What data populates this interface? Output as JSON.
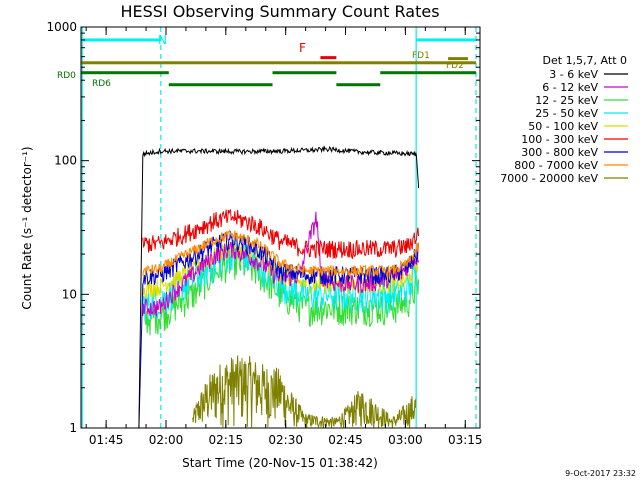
{
  "chart_data": {
    "type": "line",
    "title": "HESSI Observing Summary Count Rates",
    "xlabel": "Start Time (20-Nov-15 01:38:42)",
    "ylabel": "Count Rate (s⁻¹ detector⁻¹)",
    "yscale": "log",
    "ylim": [
      1,
      1000
    ],
    "xlim_minutes": [
      0,
      100
    ],
    "x_ticks": [
      {
        "m": 6.3,
        "label": "01:45"
      },
      {
        "m": 21.3,
        "label": "02:00"
      },
      {
        "m": 36.3,
        "label": "02:15"
      },
      {
        "m": 51.3,
        "label": "02:30"
      },
      {
        "m": 66.3,
        "label": "02:45"
      },
      {
        "m": 81.3,
        "label": "03:00"
      },
      {
        "m": 96.3,
        "label": "03:15"
      }
    ],
    "y_ticks": [
      {
        "v": 1,
        "label": "1"
      },
      {
        "v": 10,
        "label": "10"
      },
      {
        "v": 100,
        "label": "100"
      },
      {
        "v": 1000,
        "label": "1000"
      }
    ],
    "legend_header": "Det 1,5,7, Att 0",
    "series": [
      {
        "name": "3 - 6 keV",
        "color": "#000000",
        "x": [
          14.5,
          15.5,
          20,
          30,
          40,
          50,
          58,
          62,
          70,
          78,
          84,
          84.7
        ],
        "y": [
          1,
          112,
          118,
          118,
          117,
          118,
          120,
          122,
          116,
          114,
          112,
          55
        ]
      },
      {
        "name": "6 - 12 keV",
        "color": "#cc00cc",
        "x": [
          15.5,
          20,
          28,
          34,
          38,
          44,
          50,
          55,
          58,
          59,
          60,
          64,
          72,
          80,
          84.7
        ],
        "y": [
          8,
          8,
          14,
          20,
          22,
          18,
          13,
          14,
          30,
          38,
          14,
          12,
          12,
          14,
          20
        ]
      },
      {
        "name": "12 - 25 keV",
        "color": "#33dd33",
        "x": [
          15.5,
          20,
          28,
          34,
          38,
          44,
          50,
          56,
          62,
          70,
          78,
          82,
          84.7
        ],
        "y": [
          6.5,
          7,
          10,
          15,
          18,
          15,
          10,
          8,
          8,
          8,
          8,
          9,
          12
        ]
      },
      {
        "name": "25 - 50 keV",
        "color": "#00eeee",
        "x": [
          15.5,
          20,
          28,
          34,
          38,
          44,
          50,
          56,
          62,
          70,
          78,
          82,
          84.7
        ],
        "y": [
          8.5,
          9,
          13,
          17,
          21,
          17,
          12,
          10,
          10,
          10,
          10,
          11,
          16
        ]
      },
      {
        "name": "50 - 100 keV",
        "color": "#dddd00",
        "x": [
          15.5,
          20,
          28,
          34,
          38,
          44,
          50,
          56,
          62,
          70,
          78,
          82,
          84.7
        ],
        "y": [
          11,
          11.5,
          15,
          20,
          22,
          19,
          14,
          12,
          12,
          12,
          12,
          13,
          18
        ]
      },
      {
        "name": "100 - 300 keV",
        "color": "#ee0000",
        "x": [
          15.5,
          20,
          28,
          34,
          38,
          44,
          50,
          56,
          62,
          70,
          78,
          82,
          84.7
        ],
        "y": [
          24,
          24,
          30,
          36,
          38,
          33,
          25,
          22,
          22,
          22,
          22,
          23,
          29
        ]
      },
      {
        "name": "300 - 800 keV",
        "color": "#0000cc",
        "x": [
          14.5,
          15.5,
          20,
          28,
          34,
          38,
          44,
          50,
          56,
          62,
          70,
          78,
          82,
          84.7
        ],
        "y": [
          1,
          13.5,
          14,
          19,
          24,
          26,
          22,
          15,
          14,
          14,
          14,
          14,
          16,
          21
        ]
      },
      {
        "name": "800 - 7000 keV",
        "color": "#ff8800",
        "x": [
          15.5,
          20,
          28,
          34,
          38,
          44,
          50,
          56,
          62,
          70,
          78,
          82,
          84.7
        ],
        "y": [
          15,
          15.5,
          21,
          26,
          28,
          24,
          17,
          15,
          15,
          15,
          15,
          17,
          23
        ]
      },
      {
        "name": "7000 - 20000 keV",
        "color": "#808000",
        "x": [
          28,
          31,
          34,
          38,
          42,
          46,
          50,
          52,
          56,
          64,
          67,
          70,
          78,
          81,
          84
        ],
        "y": [
          1.3,
          2.2,
          3,
          3.5,
          3.5,
          3,
          2.8,
          2,
          1.3,
          1.2,
          1.5,
          2.0,
          1.2,
          1.5,
          1.9
        ]
      }
    ],
    "annotations": {
      "N": "N",
      "F": "F",
      "FD1": "FD1",
      "FD2": "FD2",
      "RD0": "RD0",
      "RD6": "RD6"
    },
    "state_bars": [
      {
        "name": "night",
        "color": "#00eeee",
        "level": 800,
        "segments": [
          [
            0,
            20
          ],
          [
            84,
            99
          ]
        ]
      },
      {
        "name": "flare",
        "color": "#ee0000",
        "level": 590,
        "segments": [
          [
            60,
            64
          ]
        ]
      },
      {
        "name": "fast-decimation",
        "color": "#808000",
        "level": 540,
        "segments": [
          [
            0,
            99
          ]
        ]
      },
      {
        "name": "fd1-fd2",
        "color": "#808000",
        "level": 580,
        "segments": [
          [
            92,
            97
          ]
        ]
      },
      {
        "name": "rear-decimation-0",
        "color": "#007700",
        "level": 455,
        "segments": [
          [
            0,
            22
          ],
          [
            48,
            64
          ],
          [
            75,
            99
          ]
        ]
      },
      {
        "name": "rear-decimation-6",
        "color": "#007700",
        "level": 370,
        "segments": [
          [
            22,
            48
          ],
          [
            64,
            75
          ]
        ]
      }
    ],
    "vertical_lines": [
      {
        "m": 0.3,
        "style": "solid",
        "color": "#00eeee"
      },
      {
        "m": 20,
        "style": "dashed",
        "color": "#00eeee"
      },
      {
        "m": 84,
        "style": "solid",
        "color": "#00eeee"
      },
      {
        "m": 99,
        "style": "dashed",
        "color": "#00eeee"
      }
    ]
  },
  "footer_date": "9-Oct-2017 23:32"
}
